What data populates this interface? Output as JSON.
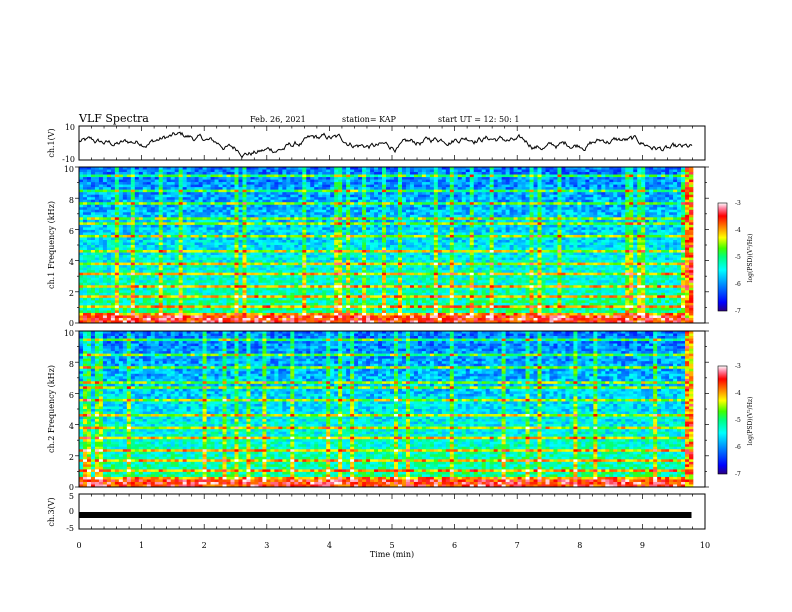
{
  "header": {
    "title": "VLF Spectra",
    "date": "Feb. 26, 2021",
    "station": "station= KAP",
    "start": "start UT = 12: 50: 1"
  },
  "colors": {
    "trace": "#000000",
    "colormap": [
      "#2a0080",
      "#0000ff",
      "#0090ff",
      "#00ffff",
      "#00ff80",
      "#40ff00",
      "#ffff00",
      "#ff8000",
      "#ff0000",
      "#ff80a0",
      "#ffffff"
    ]
  },
  "chart_data": [
    {
      "type": "line",
      "name": "ch1-waveform",
      "ylabel": "ch.1(V)",
      "ylim": [
        -10,
        10
      ],
      "yticks": [
        "10",
        "-10"
      ],
      "xlim": [
        0,
        10
      ],
      "description_values": "voltage trace oscillating roughly between -8 and 8 V over 0-9.8 min"
    },
    {
      "type": "heatmap",
      "name": "ch1-spectrogram",
      "ylabel": "ch.1 Frequency (kHz)",
      "ylim": [
        0,
        10
      ],
      "yticks": [
        "0",
        "2",
        "4",
        "6",
        "8",
        "10"
      ],
      "xlim": [
        0,
        10
      ],
      "data_extent_min": 9.8,
      "colorbar": {
        "label": "log(PSD)(V²/Hz)",
        "min": -7,
        "max": -3,
        "ticks": [
          "-3",
          "-4",
          "-5",
          "-6",
          "-7"
        ]
      }
    },
    {
      "type": "heatmap",
      "name": "ch2-spectrogram",
      "ylabel": "ch.2 Frequency (kHz)",
      "ylim": [
        0,
        10
      ],
      "yticks": [
        "0",
        "2",
        "4",
        "6",
        "8",
        "10"
      ],
      "xlim": [
        0,
        10
      ],
      "data_extent_min": 9.8,
      "colorbar": {
        "label": "log(PSD)(V²/Hz)",
        "min": -7,
        "max": -3,
        "ticks": [
          "-3",
          "-4",
          "-5",
          "-6",
          "-7"
        ]
      }
    },
    {
      "type": "line",
      "name": "ch3-waveform",
      "ylabel": "ch.3(V)",
      "ylim": [
        -5,
        5
      ],
      "yticks": [
        "5",
        "0",
        "-5"
      ],
      "xlim": [
        0,
        10
      ],
      "xlabel": "Time (min)",
      "xticks": [
        "0",
        "1",
        "2",
        "3",
        "4",
        "5",
        "6",
        "7",
        "8",
        "9",
        "10"
      ],
      "level": -1
    }
  ]
}
